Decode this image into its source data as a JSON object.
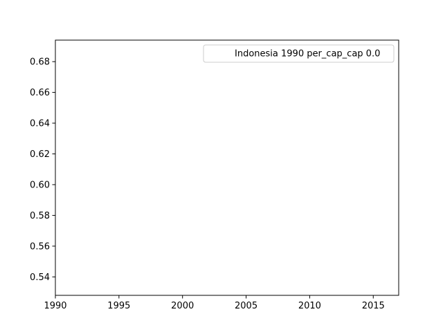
{
  "chart_data": {
    "type": "line",
    "title": "",
    "xlabel": "",
    "ylabel": "",
    "xlim": [
      1990,
      2017
    ],
    "ylim": [
      0.528,
      0.694
    ],
    "x_ticks": [
      1990,
      1995,
      2000,
      2005,
      2010,
      2015
    ],
    "x_tick_labels": [
      "1990",
      "1995",
      "2000",
      "2005",
      "2010",
      "2015"
    ],
    "y_ticks": [
      0.54,
      0.56,
      0.58,
      0.6,
      0.62,
      0.64,
      0.66,
      0.68
    ],
    "y_tick_labels": [
      "0.54",
      "0.56",
      "0.58",
      "0.60",
      "0.62",
      "0.64",
      "0.66",
      "0.68"
    ],
    "grid": false,
    "legend_position": "top-right",
    "series": [
      {
        "name": "Indonesia 1990 per_cap_cap 0.0",
        "x": [],
        "y": []
      }
    ]
  },
  "colors": {
    "axis": "#000000",
    "background": "#ffffff",
    "legend_border": "#cccccc"
  }
}
